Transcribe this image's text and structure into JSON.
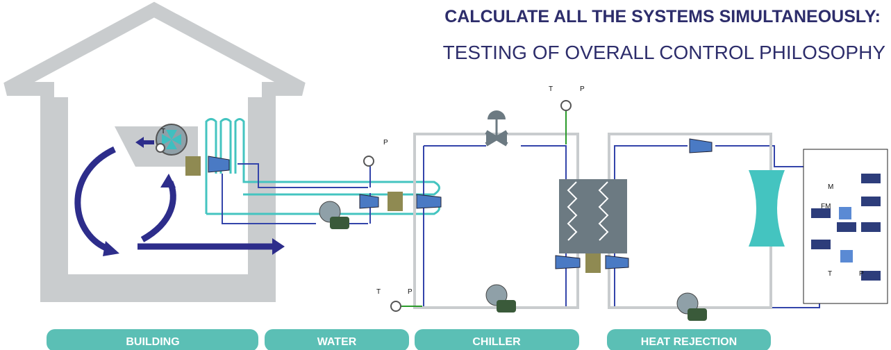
{
  "header": {
    "title": "CALCULATE ALL THE SYSTEMS SIMULTANEOUSLY:",
    "subtitle": "TESTING OF OVERALL CONTROL PHILOSOPHY"
  },
  "sections": [
    "BUILDING",
    "WATER",
    "CHILLER",
    "HEAT REJECTION"
  ],
  "labels": [
    "T",
    "P",
    "T",
    "P",
    "T",
    "P",
    "M",
    "FM",
    "T",
    "P"
  ]
}
